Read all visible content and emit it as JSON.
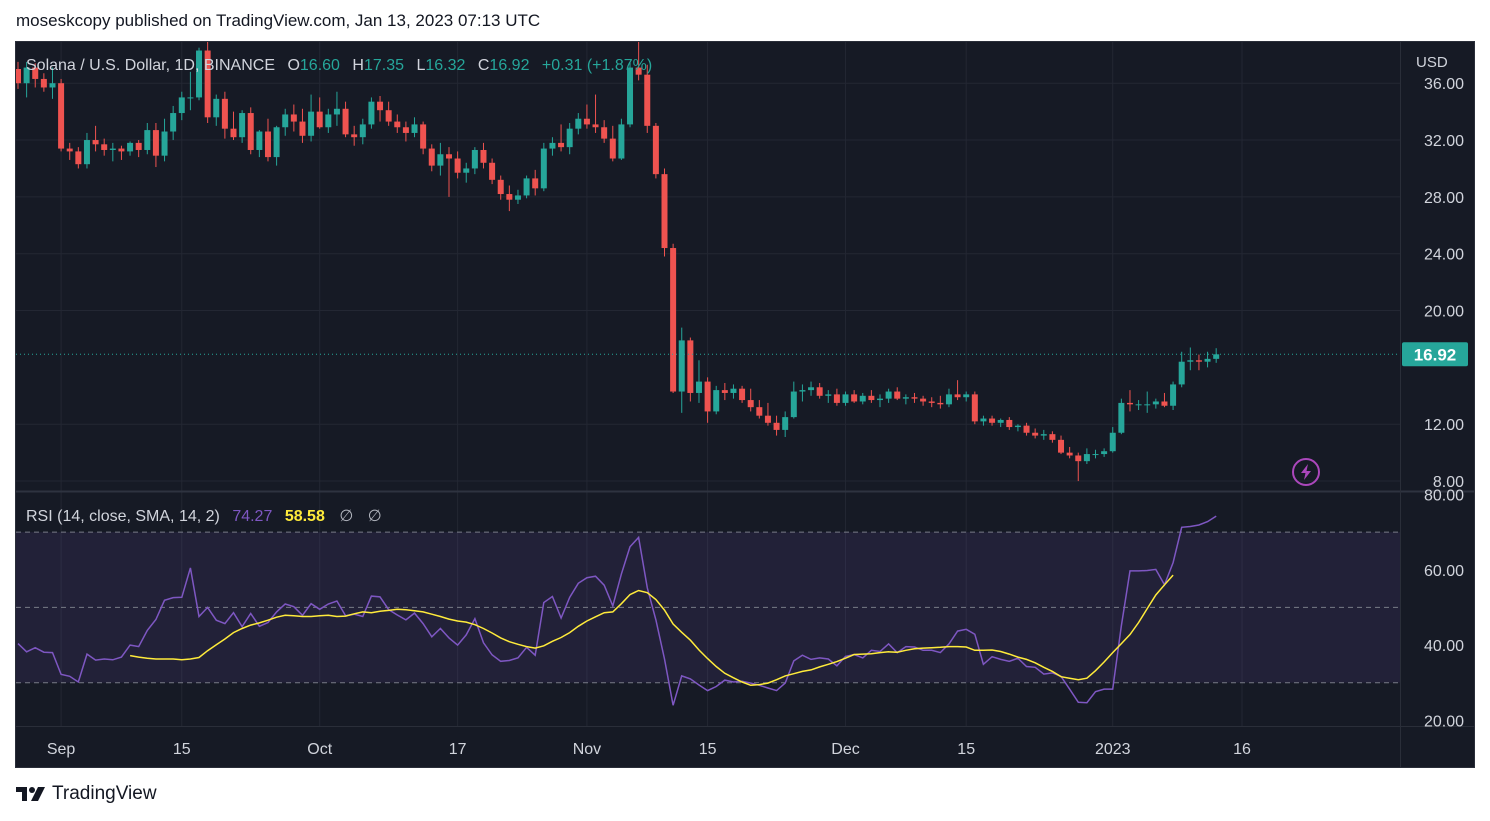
{
  "header": {
    "text": "moseskcopy published on TradingView.com, Jan 13, 2023 07:13 UTC"
  },
  "footer": {
    "logo_text": "TradingView"
  },
  "colors": {
    "background": "#161a25",
    "grid": "#232733",
    "text": "#b2b5be",
    "up": "#26a69a",
    "down": "#ef5350",
    "rsi": "#7e57c2",
    "rsi_ma": "#ffeb3b",
    "rsi_band": "#7e57c2"
  },
  "chart_data": {
    "type": "candlestick",
    "legend": {
      "symbol": "Solana / U.S. Dollar, 1D, BINANCE",
      "o_label": "O",
      "o_value": "16.60",
      "h_label": "H",
      "h_value": "17.35",
      "l_label": "L",
      "l_value": "16.32",
      "c_label": "C",
      "c_value": "16.92",
      "change": "+0.31 (+1.87%)"
    },
    "price_axis": {
      "unit": "USD",
      "ticks": [
        "36.00",
        "32.00",
        "28.00",
        "24.00",
        "20.00",
        "12.00",
        "8.00"
      ],
      "tick_values": [
        36,
        32,
        28,
        24,
        20,
        12,
        8
      ],
      "range": [
        7.3,
        38.9
      ],
      "last_price": "16.92",
      "last_price_value": 16.92
    },
    "x_axis": {
      "start_date": "2022-08-27",
      "ticks": [
        {
          "label": "Sep",
          "day": 5
        },
        {
          "label": "15",
          "day": 19
        },
        {
          "label": "Oct",
          "day": 35
        },
        {
          "label": "17",
          "day": 51
        },
        {
          "label": "Nov",
          "day": 66
        },
        {
          "label": "15",
          "day": 80
        },
        {
          "label": "Dec",
          "day": 96
        },
        {
          "label": "15",
          "day": 110
        },
        {
          "label": "2023",
          "day": 127
        },
        {
          "label": "16",
          "day": 142
        }
      ]
    },
    "ohlc": [
      [
        37.0,
        37.5,
        35.6,
        36.0
      ],
      [
        36.0,
        37.5,
        35.0,
        37.1
      ],
      [
        37.1,
        37.4,
        35.7,
        36.3
      ],
      [
        36.3,
        36.7,
        35.4,
        35.7
      ],
      [
        35.7,
        37.1,
        34.9,
        36.0
      ],
      [
        36.0,
        36.3,
        31.2,
        31.4
      ],
      [
        31.4,
        31.8,
        30.6,
        31.2
      ],
      [
        31.2,
        31.5,
        30.0,
        30.3
      ],
      [
        30.3,
        32.5,
        30.0,
        32.0
      ],
      [
        32.0,
        33.0,
        31.2,
        31.7
      ],
      [
        31.7,
        32.1,
        30.9,
        31.3
      ],
      [
        31.3,
        31.8,
        30.5,
        31.4
      ],
      [
        31.4,
        31.6,
        30.6,
        31.2
      ],
      [
        31.2,
        31.9,
        30.9,
        31.8
      ],
      [
        31.8,
        32.0,
        30.8,
        31.3
      ],
      [
        31.3,
        33.2,
        31.0,
        32.7
      ],
      [
        32.7,
        33.2,
        30.1,
        30.9
      ],
      [
        30.9,
        33.5,
        30.5,
        32.6
      ],
      [
        32.6,
        34.4,
        32.0,
        33.9
      ],
      [
        33.9,
        35.4,
        33.4,
        35.0
      ],
      [
        35.0,
        36.8,
        34.1,
        35.0
      ],
      [
        35.0,
        38.5,
        34.8,
        38.3
      ],
      [
        38.3,
        39.0,
        33.2,
        33.6
      ],
      [
        33.6,
        35.2,
        33.0,
        34.9
      ],
      [
        34.9,
        35.4,
        32.1,
        32.8
      ],
      [
        32.8,
        34.0,
        32.0,
        32.2
      ],
      [
        32.2,
        34.1,
        31.8,
        33.9
      ],
      [
        33.9,
        34.3,
        31.0,
        31.3
      ],
      [
        31.3,
        32.7,
        30.8,
        32.6
      ],
      [
        32.6,
        33.5,
        30.5,
        30.8
      ],
      [
        30.8,
        33.0,
        30.2,
        32.9
      ],
      [
        32.9,
        34.2,
        32.3,
        33.8
      ],
      [
        33.8,
        34.5,
        32.6,
        33.3
      ],
      [
        33.3,
        34.2,
        31.8,
        32.3
      ],
      [
        32.3,
        35.2,
        31.9,
        34.0
      ],
      [
        34.0,
        35.0,
        32.8,
        32.9
      ],
      [
        32.9,
        34.2,
        32.5,
        33.8
      ],
      [
        33.8,
        35.4,
        33.0,
        34.2
      ],
      [
        34.2,
        34.7,
        32.2,
        32.4
      ],
      [
        32.4,
        33.0,
        31.6,
        32.2
      ],
      [
        32.2,
        33.5,
        31.7,
        33.1
      ],
      [
        33.1,
        35.0,
        32.8,
        34.7
      ],
      [
        34.7,
        35.1,
        33.3,
        34.1
      ],
      [
        34.1,
        34.7,
        33.0,
        33.3
      ],
      [
        33.3,
        33.8,
        32.5,
        32.9
      ],
      [
        32.9,
        33.3,
        31.9,
        32.5
      ],
      [
        32.5,
        33.6,
        32.2,
        33.1
      ],
      [
        33.1,
        33.3,
        31.0,
        31.4
      ],
      [
        31.4,
        31.7,
        29.8,
        30.2
      ],
      [
        30.2,
        31.8,
        29.5,
        31.0
      ],
      [
        31.0,
        31.5,
        28.0,
        30.7
      ],
      [
        30.7,
        31.2,
        29.3,
        29.7
      ],
      [
        29.7,
        30.4,
        29.0,
        30.0
      ],
      [
        30.0,
        31.5,
        29.6,
        31.3
      ],
      [
        31.3,
        31.8,
        30.0,
        30.4
      ],
      [
        30.4,
        30.7,
        28.9,
        29.2
      ],
      [
        29.2,
        29.5,
        27.8,
        28.2
      ],
      [
        28.2,
        28.8,
        27.0,
        27.8
      ],
      [
        27.8,
        28.5,
        27.5,
        28.1
      ],
      [
        28.1,
        29.5,
        27.9,
        29.3
      ],
      [
        29.3,
        29.9,
        28.1,
        28.6
      ],
      [
        28.6,
        31.8,
        28.4,
        31.4
      ],
      [
        31.4,
        32.2,
        30.9,
        31.8
      ],
      [
        31.8,
        33.1,
        31.2,
        31.5
      ],
      [
        31.5,
        33.2,
        31.0,
        32.8
      ],
      [
        32.8,
        33.9,
        32.4,
        33.5
      ],
      [
        33.5,
        34.5,
        32.8,
        33.1
      ],
      [
        33.1,
        35.2,
        32.5,
        32.9
      ],
      [
        32.9,
        33.4,
        31.8,
        32.1
      ],
      [
        32.1,
        33.0,
        30.5,
        30.7
      ],
      [
        30.7,
        33.5,
        30.6,
        33.1
      ],
      [
        33.1,
        37.5,
        32.9,
        37.1
      ],
      [
        37.1,
        38.9,
        36.2,
        36.6
      ],
      [
        36.6,
        37.3,
        32.5,
        33.0
      ],
      [
        33.0,
        33.2,
        29.3,
        29.6
      ],
      [
        29.6,
        30.0,
        23.8,
        24.4
      ],
      [
        24.4,
        24.7,
        14.2,
        14.3
      ],
      [
        14.3,
        18.8,
        12.8,
        17.9
      ],
      [
        17.9,
        18.1,
        13.6,
        14.2
      ],
      [
        14.2,
        16.5,
        13.5,
        15.0
      ],
      [
        15.0,
        15.3,
        12.1,
        12.9
      ],
      [
        12.9,
        14.7,
        12.7,
        14.4
      ],
      [
        14.4,
        14.9,
        13.7,
        14.2
      ],
      [
        14.2,
        14.8,
        13.8,
        14.5
      ],
      [
        14.5,
        14.7,
        13.5,
        13.7
      ],
      [
        13.7,
        14.5,
        12.9,
        13.2
      ],
      [
        13.2,
        13.7,
        12.4,
        12.6
      ],
      [
        12.6,
        13.5,
        11.9,
        12.1
      ],
      [
        12.1,
        12.6,
        11.2,
        11.6
      ],
      [
        11.6,
        12.9,
        11.1,
        12.5
      ],
      [
        12.5,
        15.0,
        12.4,
        14.3
      ],
      [
        14.3,
        14.8,
        13.6,
        14.4
      ],
      [
        14.4,
        15.0,
        14.0,
        14.6
      ],
      [
        14.6,
        14.9,
        13.8,
        14.0
      ],
      [
        14.0,
        14.4,
        13.5,
        14.1
      ],
      [
        14.1,
        14.5,
        13.3,
        13.5
      ],
      [
        13.5,
        14.3,
        13.3,
        14.1
      ],
      [
        14.1,
        14.4,
        13.5,
        13.6
      ],
      [
        13.6,
        14.2,
        13.4,
        14.0
      ],
      [
        14.0,
        14.4,
        13.5,
        13.7
      ],
      [
        13.7,
        14.1,
        13.2,
        13.8
      ],
      [
        13.8,
        14.5,
        13.5,
        14.3
      ],
      [
        14.3,
        14.6,
        13.7,
        13.8
      ],
      [
        13.8,
        14.1,
        13.4,
        13.9
      ],
      [
        13.9,
        14.2,
        13.5,
        13.8
      ],
      [
        13.8,
        14.0,
        13.3,
        13.6
      ],
      [
        13.6,
        13.9,
        13.2,
        13.5
      ],
      [
        13.5,
        14.0,
        13.1,
        13.4
      ],
      [
        13.4,
        14.5,
        13.2,
        14.1
      ],
      [
        14.1,
        15.1,
        13.7,
        13.9
      ],
      [
        13.9,
        14.3,
        13.6,
        14.1
      ],
      [
        14.1,
        14.3,
        12.0,
        12.2
      ],
      [
        12.2,
        12.6,
        11.9,
        12.4
      ],
      [
        12.4,
        12.6,
        11.9,
        12.1
      ],
      [
        12.1,
        12.4,
        11.8,
        12.3
      ],
      [
        12.3,
        12.5,
        11.6,
        11.8
      ],
      [
        11.8,
        12.0,
        11.5,
        11.9
      ],
      [
        11.9,
        12.1,
        11.2,
        11.4
      ],
      [
        11.4,
        11.7,
        11.0,
        11.2
      ],
      [
        11.2,
        11.6,
        10.9,
        11.3
      ],
      [
        11.3,
        11.5,
        10.7,
        10.9
      ],
      [
        10.9,
        11.2,
        9.9,
        10.0
      ],
      [
        10.0,
        10.4,
        9.6,
        9.8
      ],
      [
        9.8,
        10.0,
        8.0,
        9.4
      ],
      [
        9.4,
        10.3,
        9.2,
        9.9
      ],
      [
        9.9,
        10.2,
        9.6,
        9.9
      ],
      [
        9.9,
        10.3,
        9.7,
        10.1
      ],
      [
        10.1,
        11.8,
        10.0,
        11.4
      ],
      [
        11.4,
        13.8,
        11.3,
        13.5
      ],
      [
        13.5,
        14.4,
        12.9,
        13.4
      ],
      [
        13.4,
        13.7,
        13.0,
        13.4
      ],
      [
        13.4,
        14.3,
        12.8,
        13.4
      ],
      [
        13.4,
        13.8,
        13.1,
        13.6
      ],
      [
        13.6,
        14.2,
        13.2,
        13.3
      ],
      [
        13.3,
        15.0,
        13.0,
        14.8
      ],
      [
        14.8,
        17.1,
        14.6,
        16.4
      ],
      [
        16.4,
        17.4,
        15.8,
        16.5
      ],
      [
        16.5,
        16.9,
        15.8,
        16.4
      ],
      [
        16.4,
        17.1,
        16.0,
        16.6
      ],
      [
        16.6,
        17.35,
        16.32,
        16.92
      ]
    ],
    "rsi": {
      "label": "RSI (14, close, SMA, 14, 2)",
      "value": "74.27",
      "ma_value": "58.58",
      "extra1": "∅",
      "extra2": "∅",
      "ticks": [
        "80.00",
        "60.00",
        "40.00",
        "20.00"
      ],
      "tick_values": [
        80,
        60,
        40,
        20
      ],
      "range": [
        18.5,
        80.4
      ],
      "upper_band": 70,
      "middle_band": 50,
      "lower_band": 30,
      "values": [
        40.4,
        38.2,
        39.3,
        38.1,
        38.0,
        32.2,
        31.7,
        30.2,
        37.6,
        36.0,
        36.3,
        36.1,
        36.8,
        40.0,
        39.6,
        43.9,
        46.8,
        51.9,
        52.6,
        52.7,
        60.5,
        47.6,
        50.0,
        46.6,
        45.7,
        48.6,
        44.9,
        48.4,
        45.0,
        46.0,
        48.8,
        50.9,
        50.2,
        47.9,
        51.0,
        49.5,
        50.9,
        51.7,
        47.8,
        48.2,
        47.6,
        53.0,
        52.8,
        49.4,
        48.0,
        46.7,
        48.5,
        45.7,
        42.2,
        44.4,
        41.9,
        40.0,
        42.7,
        47.0,
        40.6,
        37.4,
        35.7,
        35.9,
        36.6,
        39.4,
        37.3,
        51.3,
        52.9,
        47.2,
        52.7,
        56.4,
        57.9,
        58.3,
        55.9,
        50.4,
        58.9,
        66.1,
        68.6,
        55.2,
        46.7,
        36.3,
        24.0,
        31.8,
        31.0,
        29.4,
        27.9,
        29.0,
        30.7,
        30.2,
        30.4,
        29.9,
        29.3,
        28.6,
        27.9,
        29.9,
        35.8,
        37.3,
        36.2,
        36.6,
        36.3,
        34.5,
        37.0,
        37.5,
        36.6,
        38.6,
        38.3,
        40.3,
        38.0,
        39.6,
        39.5,
        38.6,
        38.6,
        38.0,
        40.3,
        43.7,
        44.2,
        42.9,
        34.9,
        36.9,
        36.2,
        35.7,
        36.5,
        34.3,
        34.1,
        32.3,
        32.6,
        31.7,
        28.3,
        24.8,
        24.7,
        27.6,
        28.3,
        28.3,
        45.2,
        59.7,
        59.7,
        59.8,
        60.1,
        56.0,
        61.9,
        71.3,
        71.5,
        71.9,
        72.8,
        74.27
      ],
      "ma_values": [
        null,
        null,
        null,
        null,
        null,
        null,
        null,
        null,
        null,
        null,
        null,
        null,
        null,
        37.2,
        36.8,
        36.5,
        36.3,
        36.3,
        36.3,
        36.1,
        36.3,
        36.7,
        38.5,
        40.1,
        41.6,
        43.3,
        44.4,
        45.3,
        45.9,
        46.6,
        47.4,
        47.9,
        47.8,
        47.6,
        47.6,
        47.8,
        47.9,
        47.6,
        47.7,
        48.3,
        48.8,
        48.6,
        49.0,
        49.2,
        49.5,
        49.4,
        49.1,
        48.8,
        48.2,
        47.6,
        46.9,
        46.4,
        46.1,
        45.4,
        44.4,
        43.2,
        41.9,
        40.9,
        40.2,
        39.6,
        39.2,
        39.8,
        41.0,
        42.0,
        43.3,
        45.0,
        46.4,
        47.5,
        48.6,
        48.8,
        51.0,
        53.4,
        54.5,
        53.9,
        52.1,
        49.3,
        45.6,
        43.4,
        41.3,
        38.7,
        36.4,
        34.3,
        32.5,
        31.3,
        30.2,
        29.3,
        29.5,
        29.9,
        30.8,
        31.8,
        32.4,
        33.0,
        33.4,
        34.2,
        34.9,
        35.6,
        36.5,
        37.5,
        37.6,
        37.7,
        38.0,
        38.2,
        38.1,
        38.6,
        39.0,
        39.2,
        39.3,
        39.4,
        39.6,
        39.6,
        39.5,
        38.6,
        38.6,
        38.7,
        38.3,
        37.6,
        36.8,
        36.2,
        35.3,
        34.1,
        33.0,
        31.6,
        31.2,
        30.8,
        31.2,
        33.2,
        35.5,
        38.0,
        40.4,
        42.8,
        46.0,
        49.7,
        53.3,
        56.0,
        58.58
      ]
    }
  }
}
